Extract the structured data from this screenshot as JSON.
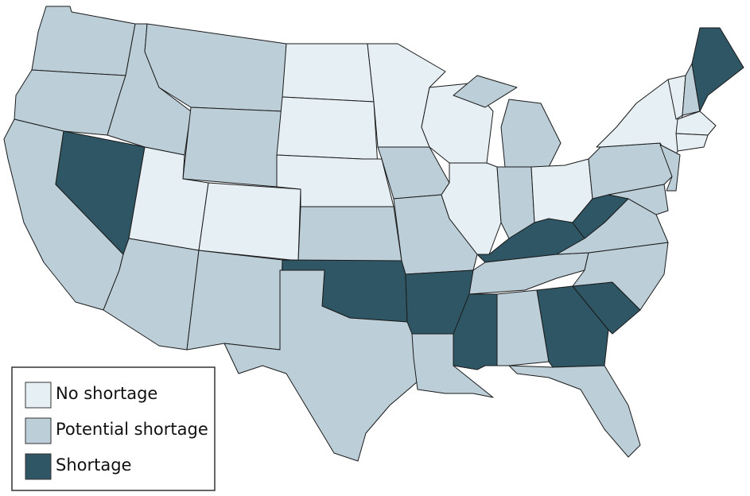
{
  "legend": {
    "items": [
      {
        "label": "No shortage",
        "color": "#e6eff3"
      },
      {
        "label": "Potential shortage",
        "color": "#bccfd8"
      },
      {
        "label": "Shortage",
        "color": "#2f5665"
      }
    ]
  }
}
